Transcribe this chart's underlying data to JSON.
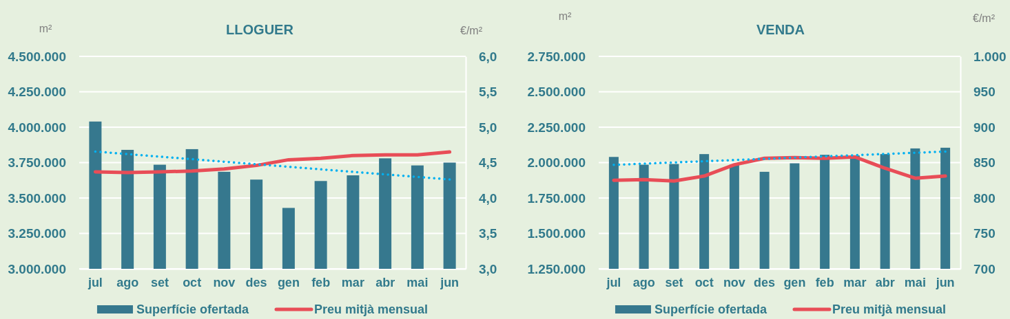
{
  "chart_data": [
    {
      "type": "bar",
      "title": "LLOGUER",
      "ylabel": "m²",
      "y2label": "€/m²",
      "categories": [
        "jul",
        "ago",
        "set",
        "oct",
        "nov",
        "des",
        "gen",
        "feb",
        "mar",
        "abr",
        "mai",
        "jun"
      ],
      "series": [
        {
          "name": "Superfície ofertada",
          "color": "#36788e",
          "values": [
            4040000,
            3840000,
            3735000,
            3845000,
            3685000,
            3630000,
            3430000,
            3620000,
            3660000,
            3780000,
            3730000,
            3750000
          ]
        },
        {
          "name": "Preu mitjà mensual",
          "type": "line",
          "axis": "y2",
          "color": "#e84d57",
          "values": [
            4.37,
            4.36,
            4.37,
            4.38,
            4.41,
            4.46,
            4.54,
            4.56,
            4.6,
            4.61,
            4.61,
            4.65
          ]
        },
        {
          "type": "line",
          "color": "#00b0f0",
          "line_style": "dotted",
          "x": [
            "jul",
            "jun"
          ],
          "values": [
            3828000,
            3631000
          ]
        }
      ],
      "ylim": [
        3000000,
        4500000
      ],
      "yticks": [
        {
          "value": 3000000,
          "label": "3.000.000"
        },
        {
          "value": 3250000,
          "label": "3.250.000"
        },
        {
          "value": 3500000,
          "label": "3.500.000"
        },
        {
          "value": 3750000,
          "label": "3.750.000"
        },
        {
          "value": 4000000,
          "label": "4.000.000"
        },
        {
          "value": 4250000,
          "label": "4.250.000"
        },
        {
          "value": 4500000,
          "label": "4.500.000"
        }
      ],
      "y2lim": [
        3,
        6
      ],
      "y2ticks": [
        {
          "value": 3,
          "label": "3,0"
        },
        {
          "value": 3.5,
          "label": "3,5"
        },
        {
          "value": 4,
          "label": "4,0"
        },
        {
          "value": 4.5,
          "label": "4,5"
        },
        {
          "value": 5,
          "label": "5,0"
        },
        {
          "value": 5.5,
          "label": "5,5"
        },
        {
          "value": 6,
          "label": "6,0"
        }
      ],
      "grid": "y",
      "legend": "bottom"
    },
    {
      "type": "bar",
      "title": "VENDA",
      "ylabel": "m²",
      "y2label": "€/m²",
      "categories": [
        "jul",
        "ago",
        "set",
        "oct",
        "nov",
        "des",
        "gen",
        "feb",
        "mar",
        "abr",
        "mai",
        "jun"
      ],
      "series": [
        {
          "name": "Superfície ofertada",
          "color": "#36788e",
          "values": [
            2040000,
            1985000,
            1990000,
            2060000,
            1985000,
            1935000,
            1995000,
            2055000,
            2050000,
            2060000,
            2100000,
            2105000
          ]
        },
        {
          "name": "Preu mitjà mensual",
          "type": "line",
          "axis": "y2",
          "color": "#e84d57",
          "values": [
            825,
            826,
            824,
            831,
            847,
            856,
            857,
            856,
            858,
            842,
            828,
            831
          ]
        },
        {
          "type": "line",
          "color": "#00b0f0",
          "line_style": "dotted",
          "x": [
            "jul",
            "jun"
          ],
          "values": [
            1984000,
            2078000
          ]
        }
      ],
      "ylim": [
        1250000,
        2750000
      ],
      "yticks": [
        {
          "value": 1250000,
          "label": "1.250.000"
        },
        {
          "value": 1500000,
          "label": "1.500.000"
        },
        {
          "value": 1750000,
          "label": "1.750.000"
        },
        {
          "value": 2000000,
          "label": "2.000.000"
        },
        {
          "value": 2250000,
          "label": "2.250.000"
        },
        {
          "value": 2500000,
          "label": "2.500.000"
        },
        {
          "value": 2750000,
          "label": "2.750.000"
        }
      ],
      "y2lim": [
        700,
        1000
      ],
      "y2ticks": [
        700,
        750,
        800,
        850,
        900,
        950,
        {
          "value": 1000,
          "label": "1.000"
        }
      ],
      "grid": "y",
      "legend": "bottom"
    }
  ]
}
